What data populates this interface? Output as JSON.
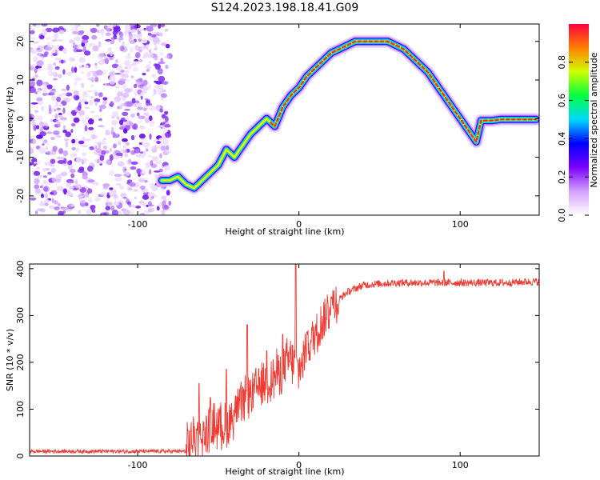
{
  "title": "S124.2023.198.18.41.G09",
  "colors": {
    "snr_line": "#f03a32",
    "noise": "#7a20f0",
    "colormap": [
      "#ffffff",
      "#d4a0ff",
      "#7a00ff",
      "#0000ff",
      "#00d8ff",
      "#00ff40",
      "#d0ff00",
      "#ff8000",
      "#ff0040"
    ]
  },
  "chart_data": [
    {
      "type": "heatmap",
      "xlabel": "Height of straight line (km)",
      "ylabel": "Frequency (Hz)",
      "xlim": [
        -167,
        149
      ],
      "ylim": [
        -25,
        24.5
      ],
      "xticks": [
        -100,
        0,
        100
      ],
      "yticks": [
        -20,
        -10,
        0,
        10,
        20
      ],
      "noise_region_x": [
        -167,
        -82
      ],
      "ridge": {
        "x": [
          -85,
          -80,
          -75,
          -70,
          -65,
          -60,
          -55,
          -50,
          -45,
          -40,
          -35,
          -30,
          -25,
          -20,
          -15,
          -12,
          -10,
          -5,
          0,
          5,
          10,
          15,
          20,
          25,
          30,
          35,
          40,
          45,
          50,
          55,
          60,
          65,
          70,
          75,
          80,
          85,
          90,
          95,
          100,
          105,
          110,
          113,
          115,
          120,
          125,
          130,
          135,
          140,
          147
        ],
        "y": [
          -16,
          -16,
          -15,
          -17,
          -18,
          -16,
          -14,
          -12,
          -8,
          -10,
          -7,
          -4,
          -2,
          0,
          -2,
          1,
          3,
          6,
          8,
          11,
          13,
          15,
          17,
          18,
          19,
          20,
          20,
          20,
          20,
          20,
          19,
          18,
          16,
          14,
          12,
          9,
          6,
          3,
          0,
          -3,
          -6,
          -0.5,
          -0.5,
          -0.5,
          -0.2,
          -0.2,
          -0.2,
          -0.2,
          -0.2
        ]
      },
      "colorbar": {
        "label": "Normalized spectral amplitude",
        "range": [
          0,
          1
        ],
        "ticks": [
          "0.0",
          "0.2",
          "0.4",
          "0.6",
          "0.8"
        ]
      }
    },
    {
      "type": "line",
      "xlabel": "Height of straight line (km)",
      "ylabel": "SNR (10 * v/v)",
      "xlim": [
        -167,
        149
      ],
      "ylim": [
        0,
        410
      ],
      "xticks": [
        -100,
        0,
        100
      ],
      "yticks": [
        0,
        100,
        200,
        300,
        400
      ],
      "series": [
        {
          "x": [
            -167,
            -100,
            -70,
            -65,
            -60,
            -55,
            -50,
            -45,
            -40,
            -35,
            -30,
            -25,
            -20,
            -15,
            -10,
            -5,
            0,
            5,
            10,
            15,
            20,
            25,
            30,
            40,
            50,
            60,
            70,
            80,
            90,
            100,
            110,
            120,
            130,
            140,
            149
          ],
          "values": [
            10,
            10,
            10,
            45,
            40,
            60,
            70,
            60,
            95,
            110,
            130,
            150,
            160,
            170,
            190,
            205,
            180,
            230,
            260,
            290,
            320,
            335,
            350,
            365,
            368,
            370,
            370,
            370,
            370,
            370,
            370,
            370,
            370,
            372,
            372
          ],
          "spikes": [
            [
              -62,
              155
            ],
            [
              -55,
              125
            ],
            [
              -45,
              185
            ],
            [
              -32,
              280
            ],
            [
              -20,
              225
            ],
            [
              -10,
              260
            ],
            [
              -2,
              410
            ],
            [
              5,
              265
            ],
            [
              20,
              340
            ],
            [
              90,
              395
            ]
          ]
        }
      ]
    }
  ]
}
